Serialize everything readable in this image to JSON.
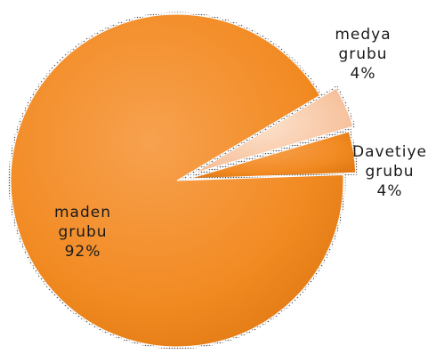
{
  "chart_data": {
    "type": "pie",
    "title": "",
    "slices": [
      {
        "label_lines": [
          "medya",
          "grubu",
          "4%"
        ],
        "value": 4,
        "color": "#f8c9a6",
        "exploded": true
      },
      {
        "label_lines": [
          "Davetiye",
          "grubu",
          "4%"
        ],
        "value": 4,
        "color": "#f28a22",
        "exploded": true
      },
      {
        "label_lines": [
          "maden",
          "grubu",
          "92%"
        ],
        "value": 92,
        "color": "#f28a22",
        "exploded": false
      }
    ],
    "legend": "none"
  }
}
